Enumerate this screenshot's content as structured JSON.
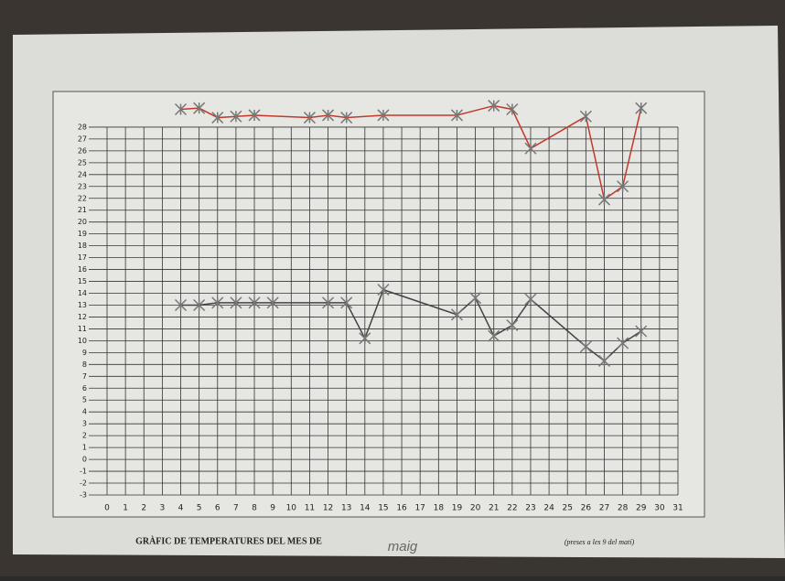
{
  "chart_data": {
    "type": "line",
    "title": "GRÀFIC DE TEMPERATURES DEL MES DE",
    "annotation": "maig",
    "subtitle": "(preses a les 9 del matí)",
    "xlim": [
      0,
      31
    ],
    "ylim": [
      -3,
      30.5
    ],
    "xticks": [
      0,
      1,
      2,
      3,
      4,
      5,
      6,
      7,
      8,
      9,
      10,
      11,
      12,
      13,
      14,
      15,
      16,
      17,
      18,
      19,
      20,
      21,
      22,
      23,
      24,
      25,
      26,
      27,
      28,
      29,
      30,
      31
    ],
    "yticks": [
      -3,
      -2,
      -1,
      0,
      1,
      2,
      3,
      4,
      5,
      6,
      7,
      8,
      9,
      10,
      11,
      12,
      13,
      14,
      15,
      16,
      17,
      18,
      19,
      20,
      21,
      22,
      23,
      24,
      25,
      26,
      27,
      28
    ],
    "grid": true,
    "series": [
      {
        "color": "#c0392b",
        "x": [
          4,
          5,
          6,
          7,
          8,
          11,
          12,
          13,
          15,
          19,
          21,
          22,
          23,
          26,
          27,
          28,
          29
        ],
        "values": [
          29.5,
          29.6,
          28.8,
          28.9,
          29,
          28.8,
          29,
          28.8,
          29,
          29,
          29.8,
          29.5,
          26.2,
          28.9,
          21.9,
          23,
          29.6
        ]
      },
      {
        "color": "#444444",
        "x": [
          4,
          5,
          6,
          7,
          8,
          9,
          12,
          13,
          14,
          15,
          19,
          20,
          21,
          22,
          23,
          26,
          27,
          28,
          29
        ],
        "values": [
          13,
          13,
          13.2,
          13.2,
          13.2,
          13.2,
          13.2,
          13.2,
          10.2,
          14.3,
          12.2,
          13.6,
          10.4,
          11.3,
          13.5,
          9.5,
          8.3,
          9.8,
          10.8
        ]
      }
    ]
  }
}
